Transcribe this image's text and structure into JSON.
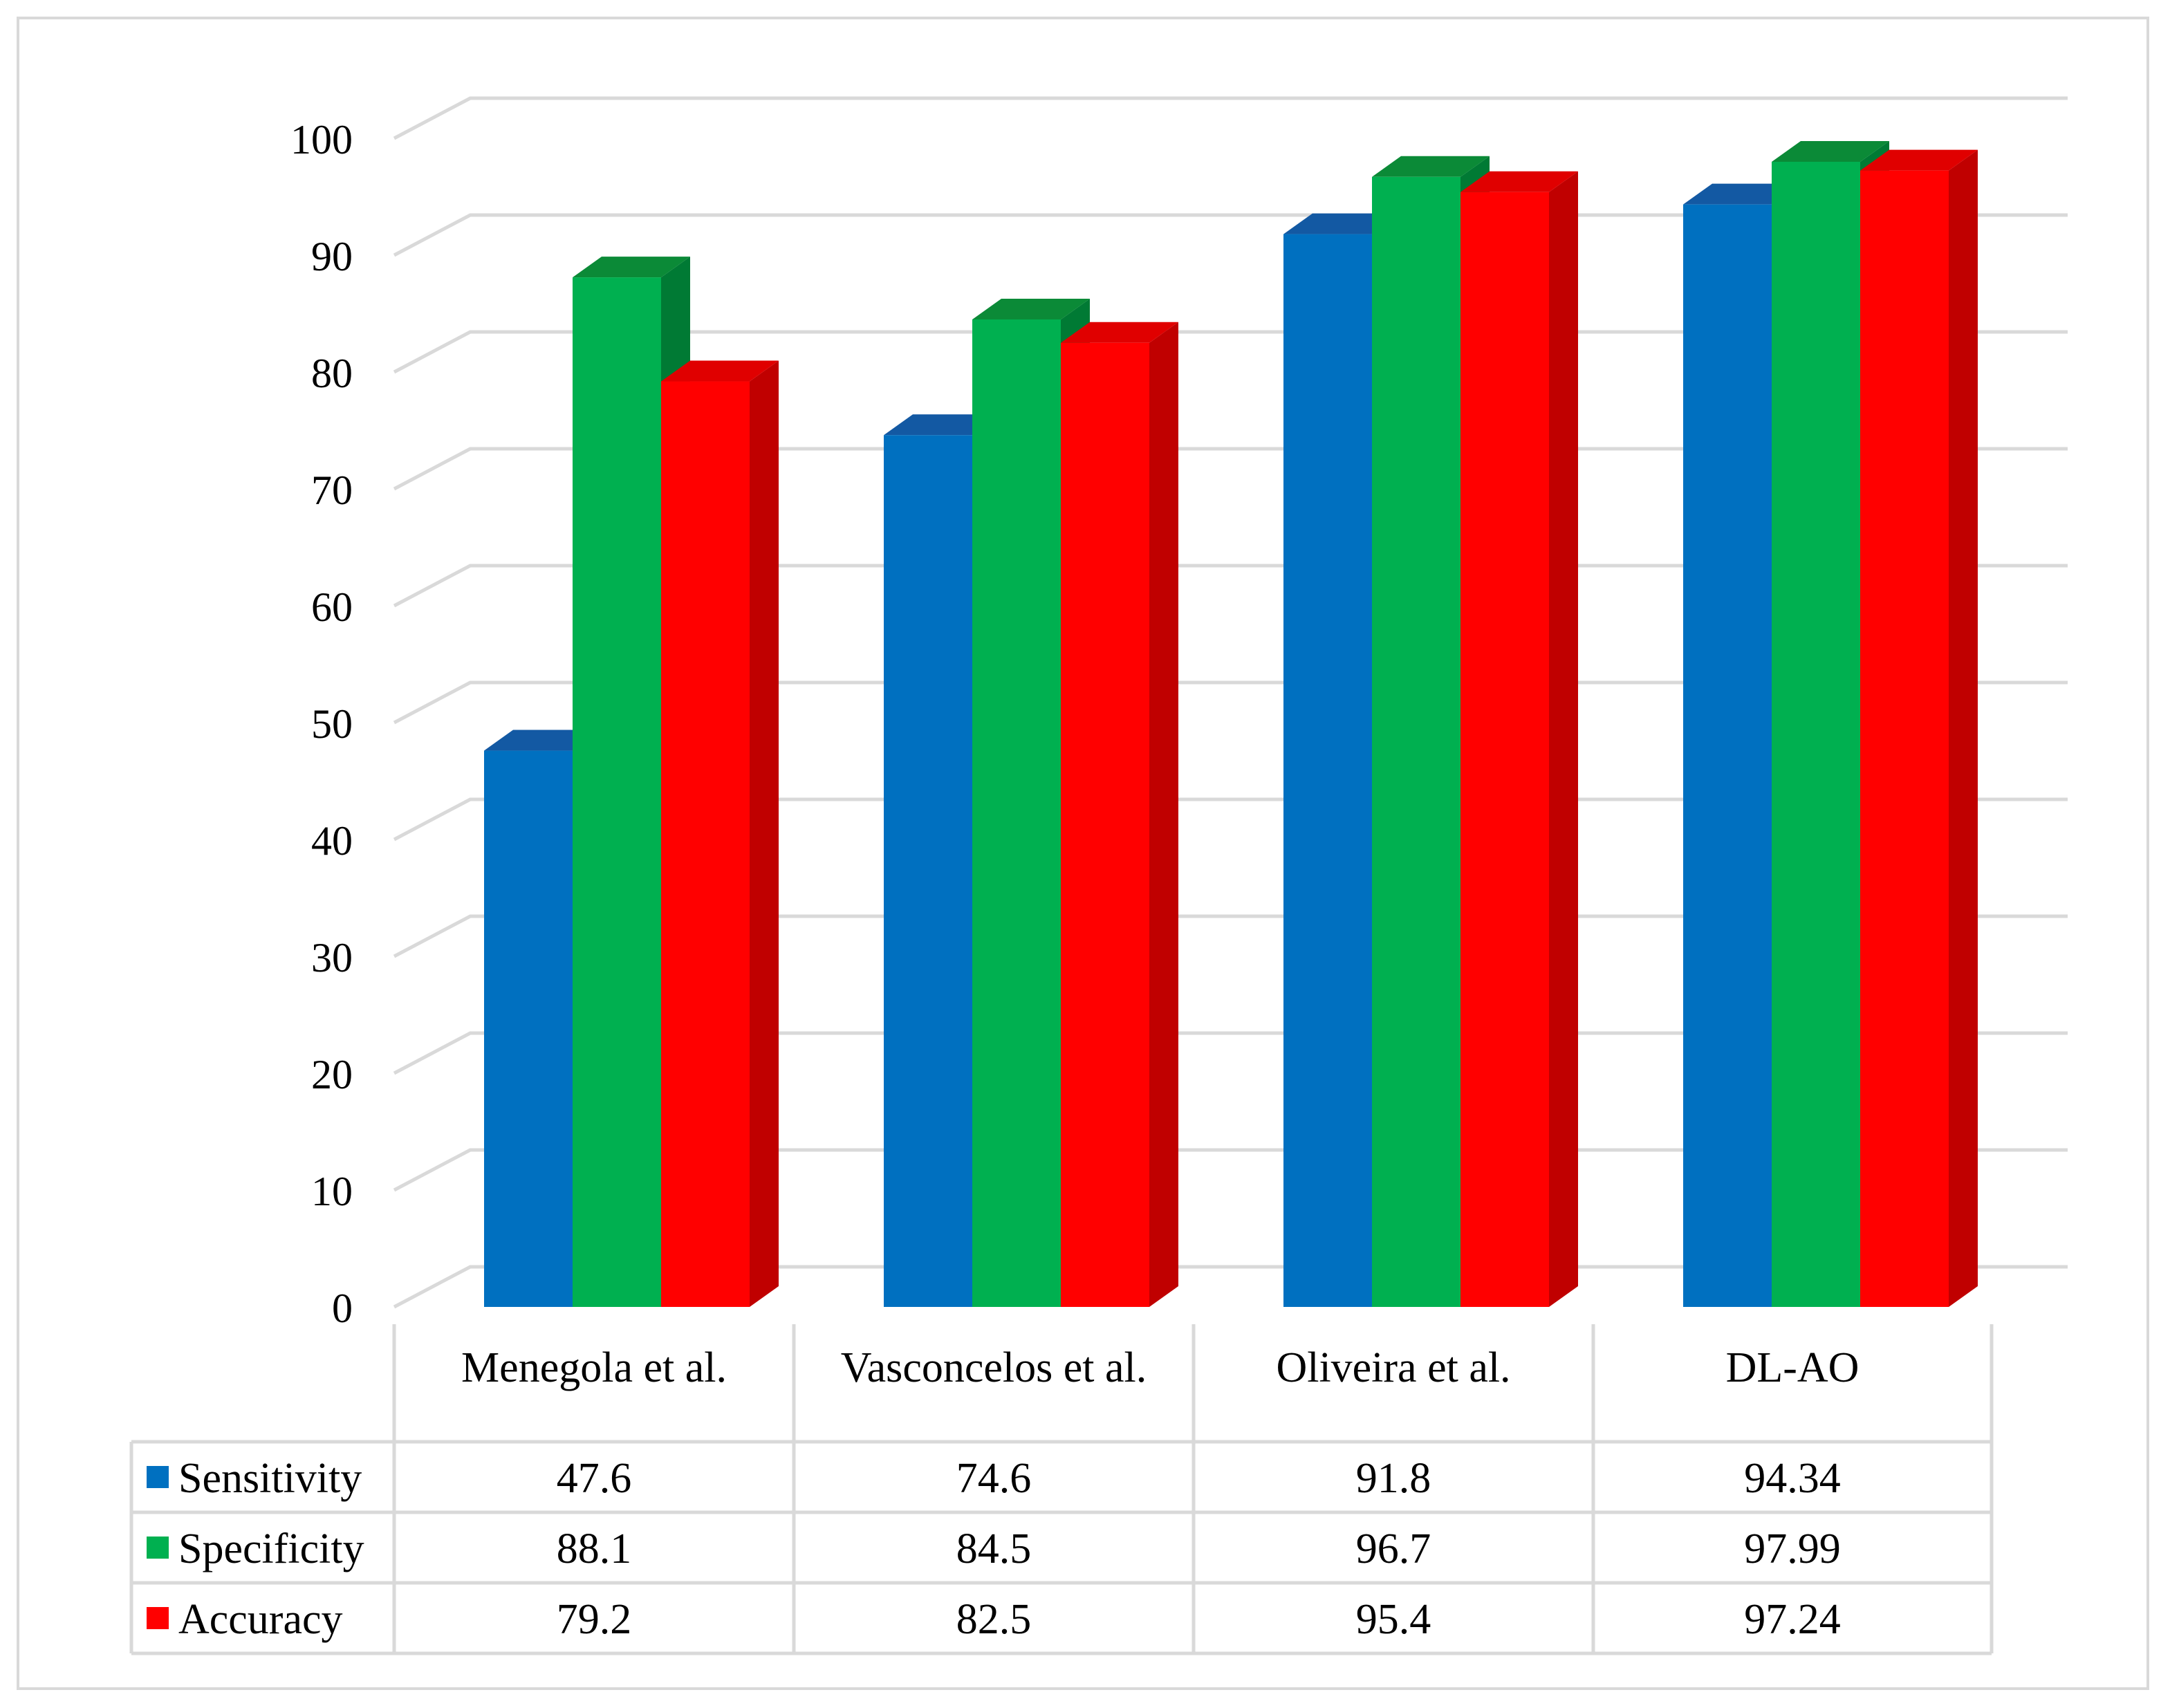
{
  "chart_data": {
    "type": "bar",
    "style": "3d-clustered-column-with-data-table",
    "categories": [
      "Menegola et al.",
      "Vasconcelos et al.",
      "Oliveira et al.",
      "DL-AO"
    ],
    "series": [
      {
        "name": "Sensitivity",
        "values": [
          47.6,
          74.6,
          91.8,
          94.34
        ],
        "labels": [
          "47.6",
          "74.6",
          "91.8",
          "94.34"
        ],
        "color": "#0070c0",
        "top": "#1359a3",
        "side": "#004f8a"
      },
      {
        "name": "Specificity",
        "values": [
          88.1,
          84.5,
          96.7,
          97.99
        ],
        "labels": [
          "88.1",
          "84.5",
          "96.7",
          "97.99"
        ],
        "color": "#00b050",
        "top": "#0b8a37",
        "side": "#007a34"
      },
      {
        "name": "Accuracy",
        "values": [
          79.2,
          82.5,
          95.4,
          97.24
        ],
        "labels": [
          "79.2",
          "82.5",
          "95.4",
          "97.24"
        ],
        "color": "#ff0000",
        "top": "#e00000",
        "side": "#c00000"
      }
    ],
    "yticks": [
      "0",
      "10",
      "20",
      "30",
      "40",
      "50",
      "60",
      "70",
      "80",
      "90",
      "100"
    ],
    "ylim": [
      0,
      100
    ],
    "title": "",
    "xlabel": "",
    "ylabel": "",
    "legend": "data-table-left",
    "gridlines": true
  }
}
